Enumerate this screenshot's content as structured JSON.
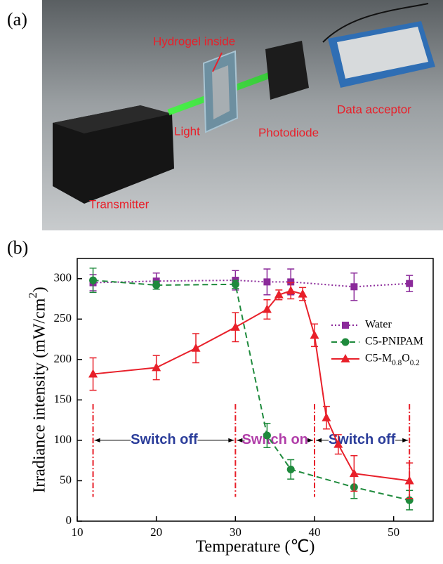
{
  "panel_a": {
    "label": "(a)",
    "labels": [
      "Hydrogel inside",
      "Light",
      "Photodiode",
      "Data acceptor",
      "Transmitter"
    ]
  },
  "chart_data": {
    "type": "line",
    "panel_label": "(b)",
    "x_label": "Temperature (℃)",
    "y_label": "Irradiance intensity (mW/cm2)",
    "xlim": [
      10,
      55
    ],
    "xticks": [
      10,
      20,
      30,
      40,
      50
    ],
    "ylim": [
      0,
      325
    ],
    "yticks": [
      0,
      50,
      100,
      150,
      200,
      250,
      300
    ],
    "series": [
      {
        "name": "Water",
        "color": "#8b2a9a",
        "marker": "square",
        "dash": "dotted",
        "x": [
          12,
          20,
          30,
          34,
          37,
          45,
          52
        ],
        "values": [
          295,
          297,
          298,
          296,
          296,
          290,
          294
        ],
        "errors": [
          10,
          10,
          12,
          16,
          16,
          17,
          10
        ]
      },
      {
        "name": "C5-PNIPAM",
        "color": "#1e8a3c",
        "marker": "circle",
        "dash": "dashed",
        "x": [
          12,
          20,
          30,
          34,
          37,
          45,
          52
        ],
        "values": [
          298,
          292,
          293,
          106,
          64,
          42,
          26
        ],
        "errors": [
          15,
          5,
          5,
          15,
          12,
          14,
          12
        ]
      },
      {
        "name": "C5-M0.8O0.2",
        "color": "#e8202a",
        "marker": "triangle",
        "dash": "solid",
        "x": [
          12,
          20,
          25,
          30,
          34,
          35.5,
          37,
          38.5,
          40,
          41.5,
          43,
          45,
          52
        ],
        "values": [
          182,
          190,
          214,
          240,
          262,
          280,
          285,
          281,
          230,
          128,
          95,
          59,
          50
        ],
        "errors": [
          20,
          15,
          18,
          18,
          12,
          6,
          10,
          8,
          14,
          14,
          12,
          22,
          22
        ]
      }
    ],
    "vlines": [
      12,
      30,
      40,
      52
    ],
    "annotations": [
      {
        "text": "Switch off",
        "color": "#2b3d9a"
      },
      {
        "text": "Switch on",
        "color": "#b03ca8"
      },
      {
        "text": "Switch off",
        "color": "#2b3d9a"
      }
    ]
  }
}
